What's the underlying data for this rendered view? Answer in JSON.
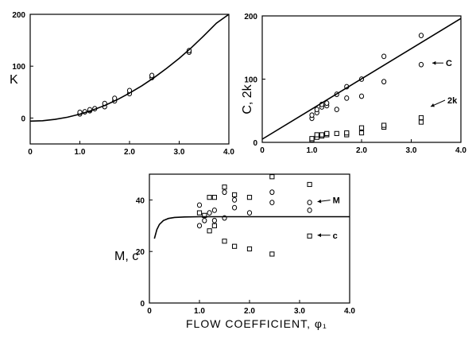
{
  "chart_data": [
    {
      "id": "k",
      "type": "scatter",
      "title": "",
      "xlabel": "",
      "ylabel": "K",
      "xlim": [
        0,
        4.0
      ],
      "ylim": [
        -50,
        200
      ],
      "xticks": [
        {
          "v": 0,
          "label": "0"
        },
        {
          "v": 1.0,
          "label": "1.0"
        },
        {
          "v": 2.0,
          "label": "2.0"
        },
        {
          "v": 3.0,
          "label": "3.0"
        },
        {
          "v": 4.0,
          "label": "4.0"
        }
      ],
      "yticks": [
        {
          "v": 0,
          "label": "0"
        },
        {
          "v": 100,
          "label": "100"
        },
        {
          "v": 200,
          "label": "200"
        }
      ],
      "grid": false,
      "series": [
        {
          "marker": "circle",
          "x": [
            1.0,
            1.0,
            1.1,
            1.2,
            1.2,
            1.3,
            1.5,
            1.5,
            1.7,
            1.7,
            2.0,
            2.0,
            2.45,
            2.45,
            3.2,
            3.2
          ],
          "y": [
            8,
            11,
            12,
            14,
            16,
            18,
            22,
            28,
            33,
            38,
            47,
            53,
            78,
            82,
            127,
            130
          ]
        },
        {
          "style": "line",
          "x": [
            0,
            0.25,
            0.5,
            0.75,
            1.0,
            1.25,
            1.5,
            1.75,
            2.0,
            2.25,
            2.5,
            2.75,
            3.0,
            3.25,
            3.5,
            3.75,
            4.0
          ],
          "y": [
            -6,
            -5.2,
            -2.6,
            1.6,
            7.5,
            15,
            24.3,
            35.3,
            48,
            62.3,
            78.3,
            96,
            115,
            136,
            159,
            183,
            210
          ]
        }
      ]
    },
    {
      "id": "c2k",
      "type": "scatter",
      "title": "",
      "xlabel": "",
      "ylabel": "C, 2k",
      "xlim": [
        0,
        4.0
      ],
      "ylim": [
        0,
        200
      ],
      "xticks": [
        {
          "v": 0,
          "label": "0"
        },
        {
          "v": 1.0,
          "label": "1.0"
        },
        {
          "v": 2.0,
          "label": "2.0"
        },
        {
          "v": 3.0,
          "label": "3.0"
        },
        {
          "v": 4.0,
          "label": "4.0"
        }
      ],
      "yticks": [
        {
          "v": 0,
          "label": "0"
        },
        {
          "v": 100,
          "label": "100"
        },
        {
          "v": 200,
          "label": "200"
        }
      ],
      "grid": false,
      "series": [
        {
          "name": "C",
          "marker": "circle",
          "x": [
            1.0,
            1.0,
            1.1,
            1.1,
            1.2,
            1.2,
            1.3,
            1.3,
            1.5,
            1.5,
            1.7,
            1.7,
            2.0,
            2.0,
            2.45,
            2.45,
            3.2,
            3.2,
            1.0
          ],
          "y": [
            38,
            43,
            47,
            52,
            56,
            60,
            58,
            62,
            52,
            76,
            70,
            88,
            73,
            100,
            96,
            136,
            123,
            169,
            4
          ]
        },
        {
          "name": "2k",
          "marker": "square",
          "x": [
            1.0,
            1.0,
            1.1,
            1.1,
            1.2,
            1.2,
            1.3,
            1.3,
            1.5,
            1.7,
            1.7,
            2.0,
            2.0,
            2.45,
            2.45,
            3.2,
            3.2
          ],
          "y": [
            4,
            6,
            8,
            12,
            10,
            12,
            12,
            14,
            14,
            12,
            15,
            15,
            23,
            24,
            27,
            32,
            39
          ]
        },
        {
          "style": "line",
          "x": [
            0,
            4.0
          ],
          "y": [
            5,
            196
          ]
        }
      ],
      "annotations": [
        {
          "text": "C",
          "series": "C",
          "x": 3.2,
          "y": 123
        },
        {
          "text": "2k",
          "series": "2k",
          "x": 3.2,
          "y": 39
        }
      ]
    },
    {
      "id": "mc",
      "type": "scatter",
      "title": "",
      "xlabel": "FLOW  COEFFICIENT,  φ₁",
      "ylabel": "M, c",
      "xlim": [
        0,
        4.0
      ],
      "ylim": [
        0,
        50
      ],
      "xticks": [
        {
          "v": 0,
          "label": "0"
        },
        {
          "v": 1.0,
          "label": "1.0"
        },
        {
          "v": 2.0,
          "label": "2.0"
        },
        {
          "v": 3.0,
          "label": "3.0"
        },
        {
          "v": 4.0,
          "label": "4.0"
        }
      ],
      "yticks": [
        {
          "v": 0,
          "label": "0"
        },
        {
          "v": 20,
          "label": "20"
        },
        {
          "v": 40,
          "label": "40"
        }
      ],
      "grid": false,
      "series": [
        {
          "name": "M",
          "marker": "circle",
          "x": [
            1.0,
            1.0,
            1.1,
            1.2,
            1.3,
            1.3,
            1.5,
            1.5,
            1.7,
            1.7,
            2.0,
            2.45,
            2.45,
            3.2,
            3.2
          ],
          "y": [
            30,
            38,
            32,
            35,
            32,
            36,
            33,
            43,
            37,
            40,
            35,
            39,
            43,
            36,
            39
          ]
        },
        {
          "name": "c",
          "marker": "square",
          "x": [
            1.0,
            1.1,
            1.2,
            1.2,
            1.3,
            1.3,
            1.5,
            1.5,
            1.7,
            1.7,
            2.0,
            2.0,
            2.45,
            2.45,
            3.2,
            3.2
          ],
          "y": [
            35,
            34,
            28,
            41,
            30,
            41,
            24,
            45,
            22,
            42,
            21,
            41,
            19,
            49,
            26,
            46
          ]
        },
        {
          "style": "line",
          "x": [
            0.1,
            0.15,
            0.2,
            0.28,
            0.38,
            0.5,
            0.7,
            1.0,
            1.5,
            2.0,
            2.5,
            3.0,
            3.5,
            4.0
          ],
          "y": [
            25,
            28.5,
            30.5,
            32,
            32.8,
            33.2,
            33.4,
            33.5,
            33.5,
            33.5,
            33.5,
            33.5,
            33.5,
            33.5
          ]
        }
      ],
      "annotations": [
        {
          "text": "M",
          "series": "M",
          "x": 3.2,
          "y": 39
        },
        {
          "text": "c",
          "series": "c",
          "x": 3.2,
          "y": 26
        }
      ]
    }
  ]
}
